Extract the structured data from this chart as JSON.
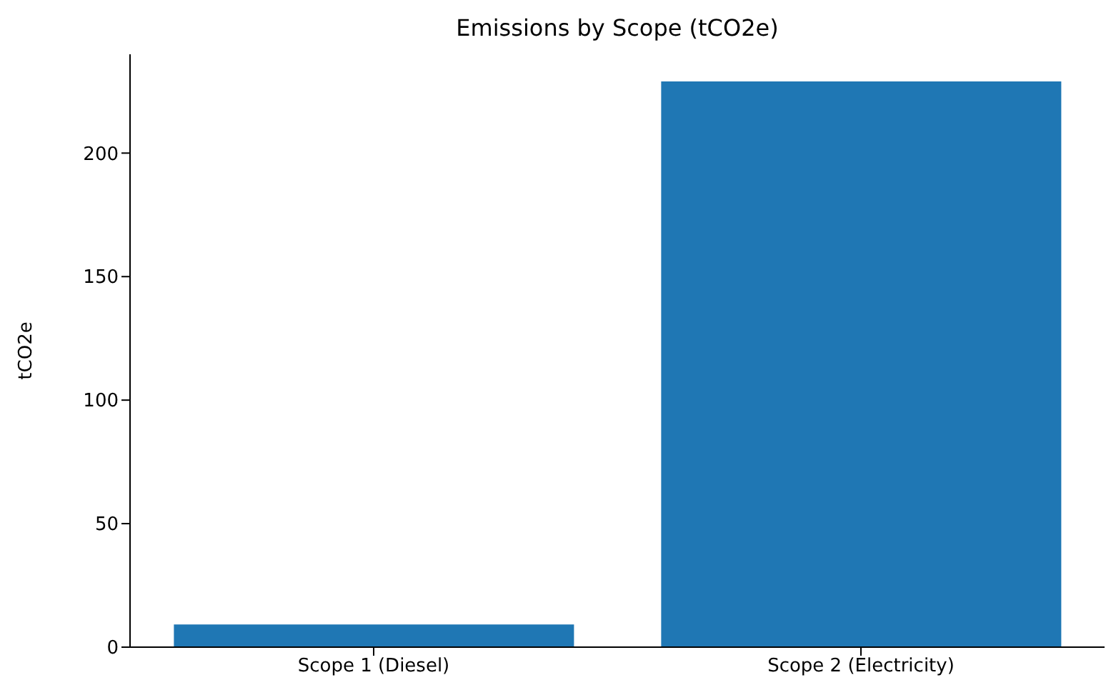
{
  "chart_data": {
    "type": "bar",
    "title": "Emissions by Scope (tCO2e)",
    "ylabel": "tCO2e",
    "categories": [
      "Scope 1 (Diesel)",
      "Scope 2 (Electricity)"
    ],
    "values": [
      9.2,
      229
    ],
    "color": "#1f77b4",
    "ylim": [
      0,
      240
    ],
    "yticks": [
      0,
      50,
      100,
      150,
      200
    ],
    "grid": false
  }
}
